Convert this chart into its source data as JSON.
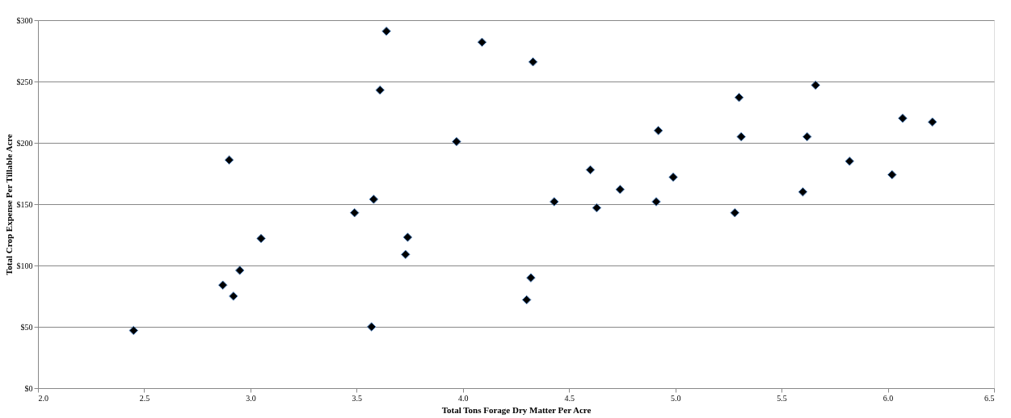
{
  "chart_data": {
    "type": "scatter",
    "xlabel": "Total Tons Forage Dry Matter Per Acre",
    "ylabel": "Total Crop Expense Per Tillable Acre",
    "x": [
      2.45,
      2.87,
      2.9,
      2.92,
      2.95,
      3.05,
      3.49,
      3.58,
      3.57,
      3.61,
      3.64,
      3.73,
      3.74,
      3.97,
      4.09,
      4.33,
      4.3,
      4.32,
      4.43,
      4.6,
      4.63,
      4.74,
      4.91,
      4.92,
      4.99,
      5.28,
      5.3,
      5.31,
      5.6,
      5.62,
      5.66,
      5.82,
      6.02,
      6.07,
      6.21
    ],
    "series": [
      {
        "color": "#000000",
        "values": [
          47,
          84,
          186,
          75,
          96,
          122,
          143,
          154,
          50,
          243,
          291,
          109,
          123,
          201,
          282,
          266,
          72,
          90,
          152,
          178,
          147,
          162,
          152,
          210,
          172,
          143,
          237,
          205,
          160,
          205,
          247,
          185,
          174,
          220,
          217
        ]
      }
    ],
    "marker": "diamond",
    "grid": "y",
    "legend": false,
    "xlim": [
      2.0,
      6.5
    ],
    "xticks": [
      {
        "value": 2,
        "label": "2.0"
      },
      2.5,
      {
        "value": 3,
        "label": "3.0"
      },
      3.5,
      {
        "value": 4,
        "label": "4.0"
      },
      4.5,
      {
        "value": 5,
        "label": "5.0"
      },
      5.5,
      {
        "value": 6,
        "label": "6.0"
      },
      6.5
    ],
    "ylim": [
      0,
      300
    ],
    "yticks": [
      {
        "value": 0,
        "label": "$0"
      },
      {
        "value": 50,
        "label": "$50"
      },
      {
        "value": 100,
        "label": "$100"
      },
      {
        "value": 150,
        "label": "$150"
      },
      {
        "value": 200,
        "label": "$200"
      },
      {
        "value": 250,
        "label": "$250"
      },
      {
        "value": 300,
        "label": "$300"
      }
    ]
  }
}
